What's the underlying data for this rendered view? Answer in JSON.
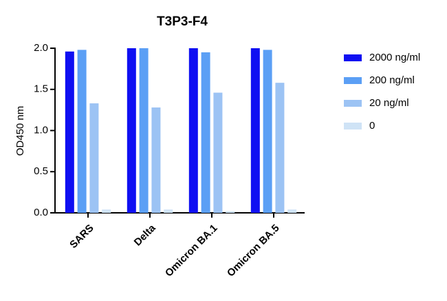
{
  "chart_data": {
    "type": "bar",
    "title": "T3P3-F4",
    "y_label": "OD450 nm",
    "categories": [
      "SARS",
      "Delta",
      "Omicron BA.1",
      "Omicron BA.5"
    ],
    "series": [
      {
        "name": "2000 ng/ml",
        "color": "#0f0ff2",
        "values": [
          1.96,
          2.0,
          2.0,
          2.0
        ]
      },
      {
        "name": "200 ng/ml",
        "color": "#5b9ff5",
        "values": [
          1.98,
          2.0,
          1.95,
          1.98
        ]
      },
      {
        "name": "20 ng/ml",
        "color": "#9cc3f4",
        "values": [
          1.33,
          1.28,
          1.46,
          1.58
        ]
      },
      {
        "name": "0",
        "color": "#cfe3f6",
        "values": [
          0.04,
          0.04,
          0.02,
          0.04
        ]
      }
    ],
    "ylim": [
      0,
      2
    ],
    "yticks": [
      {
        "value": 0,
        "label": "0.0"
      },
      0.5,
      {
        "value": 1,
        "label": "1.0"
      },
      1.5,
      {
        "value": 2,
        "label": "2.0"
      }
    ]
  }
}
